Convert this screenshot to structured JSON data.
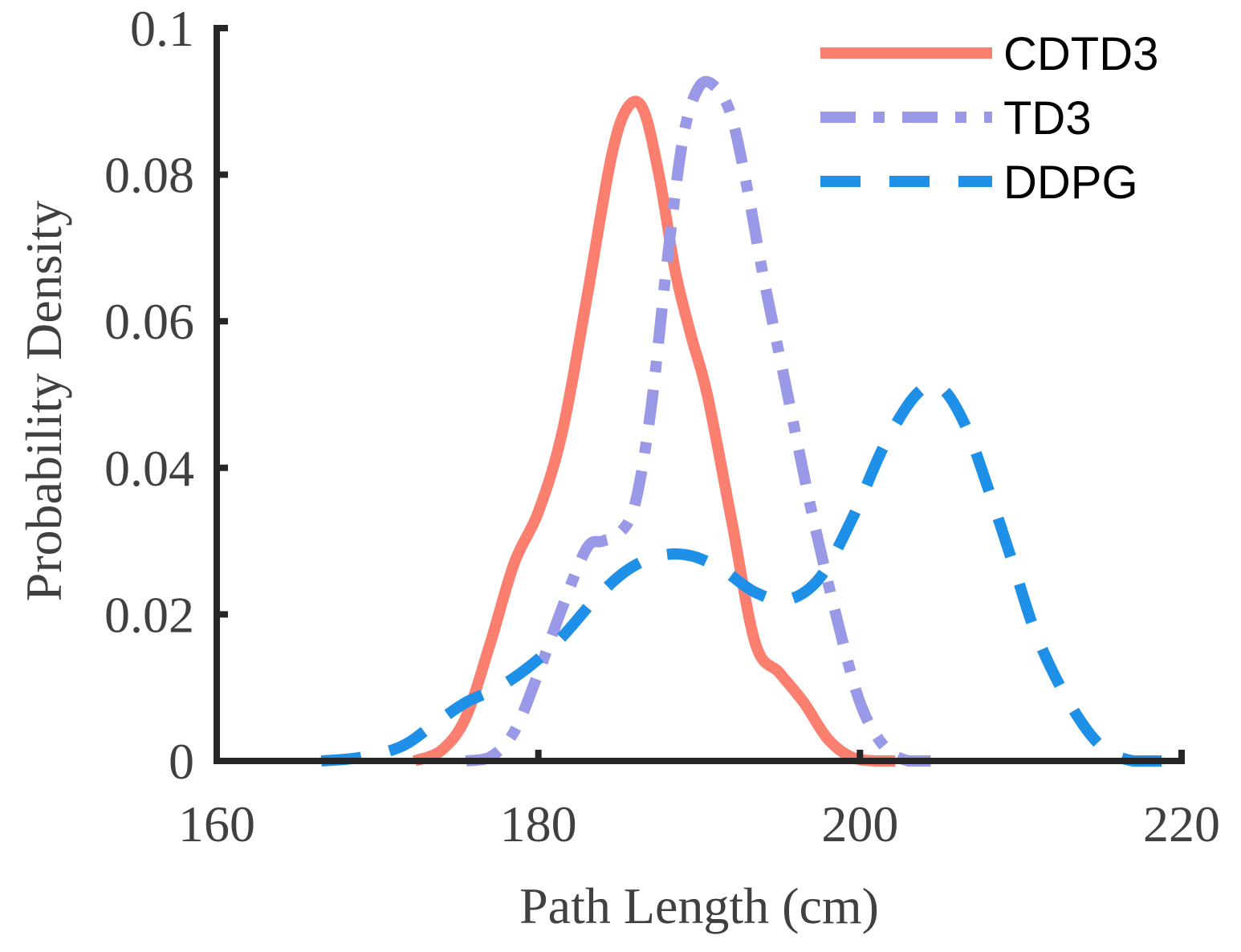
{
  "chart_data": {
    "type": "line",
    "title": "",
    "xlabel": "Path Length (cm)",
    "ylabel": "Probability Density",
    "xlim": [
      160,
      220
    ],
    "ylim": [
      0,
      0.1
    ],
    "xticks": [
      160,
      180,
      200,
      220
    ],
    "xtick_labels": [
      "160",
      "180",
      "200",
      "220"
    ],
    "yticks": [
      0,
      0.02,
      0.04,
      0.06,
      0.08,
      0.1
    ],
    "ytick_labels": [
      "0",
      "0.02",
      "0.04",
      "0.06",
      "0.08",
      "0.1"
    ],
    "legend_position": "top-right",
    "series": [
      {
        "name": "CDTD3",
        "color": "#FA7F6F",
        "dash": "solid",
        "x": [
          172.3,
          174,
          175.5,
          177,
          178.5,
          180,
          181.5,
          183,
          184.5,
          185.5,
          186.5,
          187.5,
          188.5,
          189.5,
          190.5,
          192,
          193.5,
          195,
          196.5,
          198,
          199.5,
          201,
          202.2
        ],
        "y": [
          0.0,
          0.0015,
          0.006,
          0.016,
          0.027,
          0.034,
          0.045,
          0.063,
          0.082,
          0.089,
          0.089,
          0.08,
          0.067,
          0.058,
          0.05,
          0.033,
          0.016,
          0.012,
          0.008,
          0.003,
          0.0005,
          0.0,
          0.0
        ]
      },
      {
        "name": "TD3",
        "color": "#9999E8",
        "dash": "dash-dot",
        "x": [
          175.5,
          177,
          178.5,
          180,
          181.5,
          183,
          184,
          185,
          186,
          187,
          188,
          189,
          190,
          191,
          192,
          193,
          194,
          195.5,
          197,
          198.5,
          200,
          201.5,
          203,
          204.4
        ],
        "y": [
          0.0,
          0.0005,
          0.004,
          0.012,
          0.021,
          0.029,
          0.03,
          0.031,
          0.035,
          0.048,
          0.068,
          0.085,
          0.092,
          0.092,
          0.088,
          0.078,
          0.066,
          0.05,
          0.034,
          0.02,
          0.008,
          0.002,
          0.0,
          0.0
        ]
      },
      {
        "name": "DDPG",
        "color": "#1E90E8",
        "dash": "dashed",
        "x": [
          166.5,
          169,
          171.5,
          173.5,
          175.5,
          177.5,
          179.5,
          181.5,
          183.5,
          185.5,
          187.5,
          189.5,
          191.5,
          193.5,
          195.5,
          197.5,
          199.5,
          201.5,
          203.5,
          205,
          206.5,
          208,
          209.5,
          211,
          213,
          215,
          217,
          219.5
        ],
        "y": [
          0.0,
          0.0005,
          0.002,
          0.005,
          0.008,
          0.01,
          0.013,
          0.017,
          0.022,
          0.026,
          0.028,
          0.028,
          0.026,
          0.023,
          0.022,
          0.025,
          0.033,
          0.043,
          0.05,
          0.051,
          0.046,
          0.037,
          0.027,
          0.017,
          0.008,
          0.002,
          0.0,
          0.0
        ]
      }
    ]
  }
}
